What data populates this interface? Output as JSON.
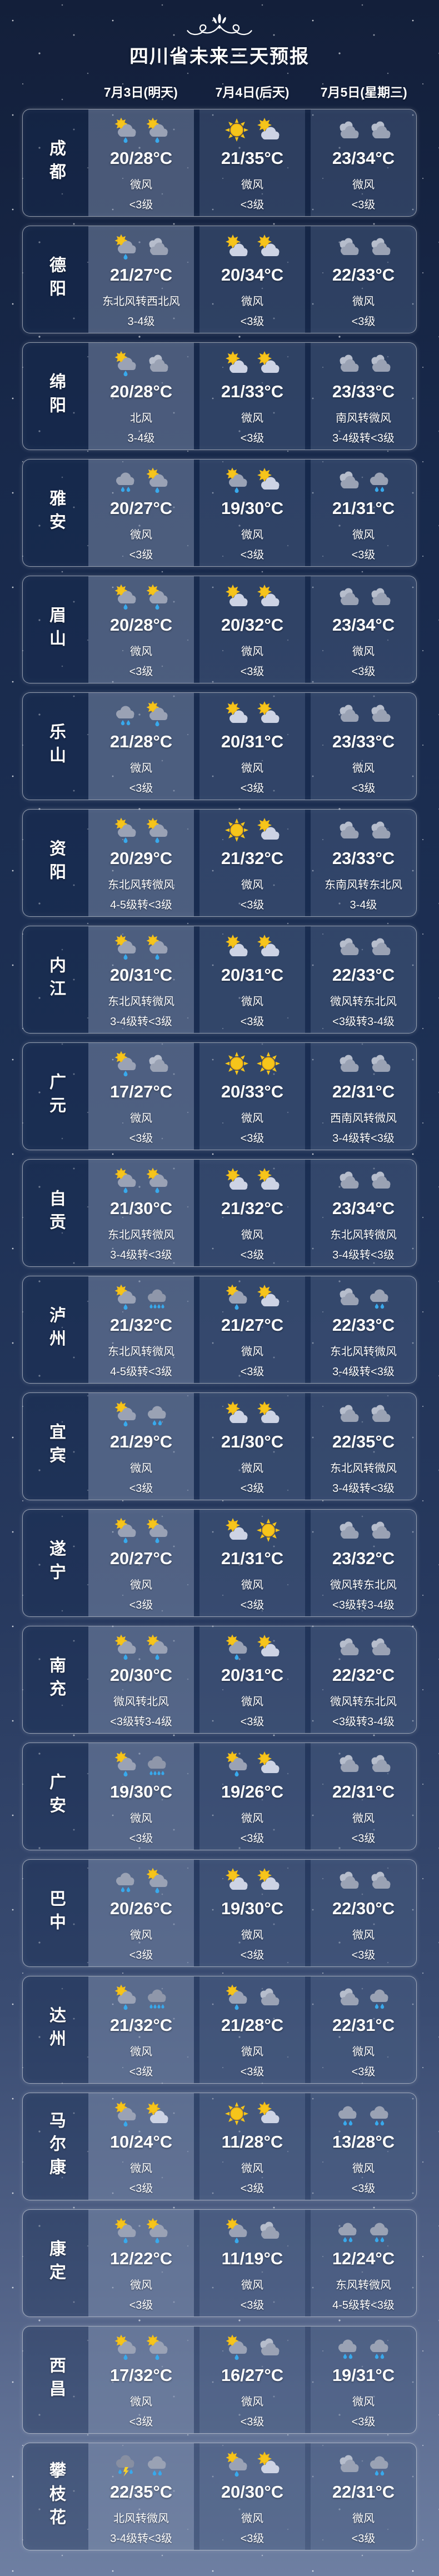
{
  "header": {
    "title": "四川省未来三天预报",
    "dates": [
      "7月3日(明天)",
      "7月4日(后天)",
      "7月5日(星期三)"
    ]
  },
  "colors": {
    "sun": "#f6c51b",
    "rain_drop": "#38a9ec",
    "cloud_light": "#cdd3e4",
    "cloud_grey": "#9aa2b5",
    "background_top": "#131f3a",
    "background_bottom": "#6e7fa2"
  },
  "icon_legend": {
    "sun": "sun-icon",
    "sun-cloud": "sun-behind-cloud-icon",
    "sun-rain": "sun-shower-icon",
    "cloud": "overcast-clouds-icon",
    "rain": "rain-cloud-icon",
    "heavy-rain": "heavy-rain-cloud-icon",
    "thunder": "thunderstorm-icon"
  },
  "cities": [
    {
      "name": "成都",
      "days": [
        {
          "icons": [
            "sun-rain",
            "sun-rain"
          ],
          "temp": "20/28°C",
          "wind": "微风",
          "power": "<3级"
        },
        {
          "icons": [
            "sun",
            "sun-cloud"
          ],
          "temp": "21/35°C",
          "wind": "微风",
          "power": "<3级"
        },
        {
          "icons": [
            "cloud",
            "cloud"
          ],
          "temp": "23/34°C",
          "wind": "微风",
          "power": "<3级"
        }
      ]
    },
    {
      "name": "德阳",
      "days": [
        {
          "icons": [
            "sun-rain",
            "cloud"
          ],
          "temp": "21/27°C",
          "wind": "东北风转西北风",
          "power": "3-4级"
        },
        {
          "icons": [
            "sun-cloud",
            "sun-cloud"
          ],
          "temp": "20/34°C",
          "wind": "微风",
          "power": "<3级"
        },
        {
          "icons": [
            "cloud",
            "cloud"
          ],
          "temp": "22/33°C",
          "wind": "微风",
          "power": "<3级"
        }
      ]
    },
    {
      "name": "绵阳",
      "days": [
        {
          "icons": [
            "sun-rain",
            "cloud"
          ],
          "temp": "20/28°C",
          "wind": "北风",
          "power": "3-4级"
        },
        {
          "icons": [
            "sun-cloud",
            "sun-cloud"
          ],
          "temp": "21/33°C",
          "wind": "微风",
          "power": "<3级"
        },
        {
          "icons": [
            "cloud",
            "cloud"
          ],
          "temp": "23/33°C",
          "wind": "南风转微风",
          "power": "3-4级转<3级"
        }
      ]
    },
    {
      "name": "雅安",
      "days": [
        {
          "icons": [
            "rain",
            "sun-rain"
          ],
          "temp": "20/27°C",
          "wind": "微风",
          "power": "<3级"
        },
        {
          "icons": [
            "sun-rain",
            "sun-cloud"
          ],
          "temp": "19/30°C",
          "wind": "微风",
          "power": "<3级"
        },
        {
          "icons": [
            "cloud",
            "rain"
          ],
          "temp": "21/31°C",
          "wind": "微风",
          "power": "<3级"
        }
      ]
    },
    {
      "name": "眉山",
      "days": [
        {
          "icons": [
            "sun-rain",
            "sun-rain"
          ],
          "temp": "20/28°C",
          "wind": "微风",
          "power": "<3级"
        },
        {
          "icons": [
            "sun-cloud",
            "sun-cloud"
          ],
          "temp": "20/32°C",
          "wind": "微风",
          "power": "<3级"
        },
        {
          "icons": [
            "cloud",
            "cloud"
          ],
          "temp": "23/34°C",
          "wind": "微风",
          "power": "<3级"
        }
      ]
    },
    {
      "name": "乐山",
      "days": [
        {
          "icons": [
            "rain",
            "sun-rain"
          ],
          "temp": "21/28°C",
          "wind": "微风",
          "power": "<3级"
        },
        {
          "icons": [
            "sun-cloud",
            "sun-cloud"
          ],
          "temp": "20/31°C",
          "wind": "微风",
          "power": "<3级"
        },
        {
          "icons": [
            "cloud",
            "cloud"
          ],
          "temp": "23/33°C",
          "wind": "微风",
          "power": "<3级"
        }
      ]
    },
    {
      "name": "资阳",
      "days": [
        {
          "icons": [
            "sun-rain",
            "sun-rain"
          ],
          "temp": "20/29°C",
          "wind": "东北风转微风",
          "power": "4-5级转<3级"
        },
        {
          "icons": [
            "sun",
            "sun-cloud"
          ],
          "temp": "21/32°C",
          "wind": "微风",
          "power": "<3级"
        },
        {
          "icons": [
            "cloud",
            "cloud"
          ],
          "temp": "23/33°C",
          "wind": "东南风转东北风",
          "power": "3-4级"
        }
      ]
    },
    {
      "name": "内江",
      "days": [
        {
          "icons": [
            "sun-rain",
            "sun-rain"
          ],
          "temp": "20/31°C",
          "wind": "东北风转微风",
          "power": "3-4级转<3级"
        },
        {
          "icons": [
            "sun-cloud",
            "sun-cloud"
          ],
          "temp": "20/31°C",
          "wind": "微风",
          "power": "<3级"
        },
        {
          "icons": [
            "cloud",
            "cloud"
          ],
          "temp": "22/33°C",
          "wind": "微风转东北风",
          "power": "<3级转3-4级"
        }
      ]
    },
    {
      "name": "广元",
      "days": [
        {
          "icons": [
            "sun-rain",
            "cloud"
          ],
          "temp": "17/27°C",
          "wind": "微风",
          "power": "<3级"
        },
        {
          "icons": [
            "sun",
            "sun"
          ],
          "temp": "20/33°C",
          "wind": "微风",
          "power": "<3级"
        },
        {
          "icons": [
            "cloud",
            "cloud"
          ],
          "temp": "22/31°C",
          "wind": "西南风转微风",
          "power": "3-4级转<3级"
        }
      ]
    },
    {
      "name": "自贡",
      "days": [
        {
          "icons": [
            "sun-rain",
            "sun-rain"
          ],
          "temp": "21/30°C",
          "wind": "东北风转微风",
          "power": "3-4级转<3级"
        },
        {
          "icons": [
            "sun-cloud",
            "sun-cloud"
          ],
          "temp": "21/32°C",
          "wind": "微风",
          "power": "<3级"
        },
        {
          "icons": [
            "cloud",
            "cloud"
          ],
          "temp": "23/34°C",
          "wind": "东北风转微风",
          "power": "3-4级转<3级"
        }
      ]
    },
    {
      "name": "泸州",
      "days": [
        {
          "icons": [
            "sun-rain",
            "heavy-rain"
          ],
          "temp": "21/32°C",
          "wind": "东北风转微风",
          "power": "4-5级转<3级"
        },
        {
          "icons": [
            "sun-rain",
            "sun-cloud"
          ],
          "temp": "21/27°C",
          "wind": "微风",
          "power": "<3级"
        },
        {
          "icons": [
            "cloud",
            "rain"
          ],
          "temp": "22/33°C",
          "wind": "东北风转微风",
          "power": "3-4级转<3级"
        }
      ]
    },
    {
      "name": "宜宾",
      "days": [
        {
          "icons": [
            "sun-rain",
            "rain"
          ],
          "temp": "21/29°C",
          "wind": "微风",
          "power": "<3级"
        },
        {
          "icons": [
            "sun-cloud",
            "sun-cloud"
          ],
          "temp": "21/30°C",
          "wind": "微风",
          "power": "<3级"
        },
        {
          "icons": [
            "cloud",
            "cloud"
          ],
          "temp": "22/35°C",
          "wind": "东北风转微风",
          "power": "3-4级转<3级"
        }
      ]
    },
    {
      "name": "遂宁",
      "days": [
        {
          "icons": [
            "sun-rain",
            "sun-rain"
          ],
          "temp": "20/27°C",
          "wind": "微风",
          "power": "<3级"
        },
        {
          "icons": [
            "sun-cloud",
            "sun"
          ],
          "temp": "21/31°C",
          "wind": "微风",
          "power": "<3级"
        },
        {
          "icons": [
            "cloud",
            "cloud"
          ],
          "temp": "23/32°C",
          "wind": "微风转东北风",
          "power": "<3级转3-4级"
        }
      ]
    },
    {
      "name": "南充",
      "days": [
        {
          "icons": [
            "sun-rain",
            "sun-rain"
          ],
          "temp": "20/30°C",
          "wind": "微风转北风",
          "power": "<3级转3-4级"
        },
        {
          "icons": [
            "sun-rain",
            "sun-cloud"
          ],
          "temp": "20/31°C",
          "wind": "微风",
          "power": "<3级"
        },
        {
          "icons": [
            "cloud",
            "cloud"
          ],
          "temp": "22/32°C",
          "wind": "微风转东北风",
          "power": "<3级转3-4级"
        }
      ]
    },
    {
      "name": "广安",
      "days": [
        {
          "icons": [
            "sun-rain",
            "heavy-rain"
          ],
          "temp": "19/30°C",
          "wind": "微风",
          "power": "<3级"
        },
        {
          "icons": [
            "sun-rain",
            "sun-cloud"
          ],
          "temp": "19/26°C",
          "wind": "微风",
          "power": "<3级"
        },
        {
          "icons": [
            "cloud",
            "cloud"
          ],
          "temp": "22/31°C",
          "wind": "微风",
          "power": "<3级"
        }
      ]
    },
    {
      "name": "巴中",
      "days": [
        {
          "icons": [
            "rain",
            "sun-rain"
          ],
          "temp": "20/26°C",
          "wind": "微风",
          "power": "<3级"
        },
        {
          "icons": [
            "sun-cloud",
            "sun-cloud"
          ],
          "temp": "19/30°C",
          "wind": "微风",
          "power": "<3级"
        },
        {
          "icons": [
            "cloud",
            "cloud"
          ],
          "temp": "22/30°C",
          "wind": "微风",
          "power": "<3级"
        }
      ]
    },
    {
      "name": "达州",
      "days": [
        {
          "icons": [
            "sun-rain",
            "heavy-rain"
          ],
          "temp": "21/32°C",
          "wind": "微风",
          "power": "<3级"
        },
        {
          "icons": [
            "sun-rain",
            "cloud"
          ],
          "temp": "21/28°C",
          "wind": "微风",
          "power": "<3级"
        },
        {
          "icons": [
            "cloud",
            "rain"
          ],
          "temp": "22/31°C",
          "wind": "微风",
          "power": "<3级"
        }
      ]
    },
    {
      "name": "马尔康",
      "days": [
        {
          "icons": [
            "sun-rain",
            "sun-cloud"
          ],
          "temp": "10/24°C",
          "wind": "微风",
          "power": "<3级"
        },
        {
          "icons": [
            "sun",
            "sun-cloud"
          ],
          "temp": "11/28°C",
          "wind": "微风",
          "power": "<3级"
        },
        {
          "icons": [
            "rain",
            "rain"
          ],
          "temp": "13/28°C",
          "wind": "微风",
          "power": "<3级"
        }
      ]
    },
    {
      "name": "康定",
      "days": [
        {
          "icons": [
            "sun-rain",
            "sun-rain"
          ],
          "temp": "12/22°C",
          "wind": "微风",
          "power": "<3级"
        },
        {
          "icons": [
            "sun-rain",
            "cloud"
          ],
          "temp": "11/19°C",
          "wind": "微风",
          "power": "<3级"
        },
        {
          "icons": [
            "rain",
            "rain"
          ],
          "temp": "12/24°C",
          "wind": "东风转微风",
          "power": "4-5级转<3级"
        }
      ]
    },
    {
      "name": "西昌",
      "days": [
        {
          "icons": [
            "sun-rain",
            "sun-rain"
          ],
          "temp": "17/32°C",
          "wind": "微风",
          "power": "<3级"
        },
        {
          "icons": [
            "sun-rain",
            "cloud"
          ],
          "temp": "16/27°C",
          "wind": "微风",
          "power": "<3级"
        },
        {
          "icons": [
            "rain",
            "rain"
          ],
          "temp": "19/31°C",
          "wind": "微风",
          "power": "<3级"
        }
      ]
    },
    {
      "name": "攀枝花",
      "days": [
        {
          "icons": [
            "thunder",
            "rain"
          ],
          "temp": "22/35°C",
          "wind": "北风转微风",
          "power": "3-4级转<3级"
        },
        {
          "icons": [
            "sun-rain",
            "sun-cloud"
          ],
          "temp": "20/30°C",
          "wind": "微风",
          "power": "<3级"
        },
        {
          "icons": [
            "cloud",
            "rain"
          ],
          "temp": "22/31°C",
          "wind": "微风",
          "power": "<3级"
        }
      ]
    }
  ]
}
